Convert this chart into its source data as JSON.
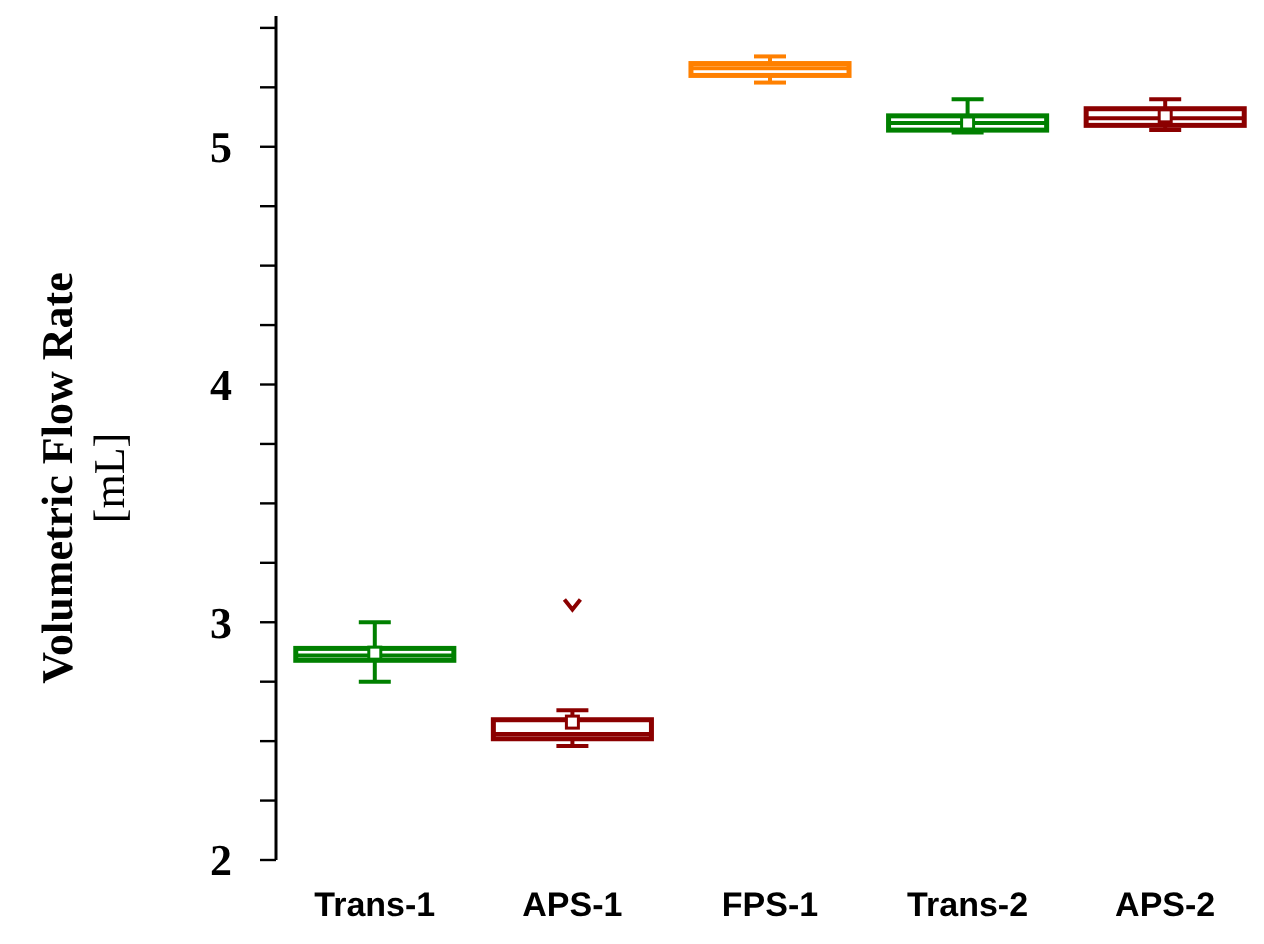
{
  "chart_data": {
    "type": "box",
    "ylabel": "Volumetric Flow Rate\n[mL]",
    "categories": [
      "Trans-1",
      "APS-1",
      "FPS-1",
      "Trans-2",
      "APS-2"
    ],
    "colors": [
      "#008000",
      "#8b0000",
      "#ff8000",
      "#008000",
      "#8b0000"
    ],
    "boxes": [
      {
        "low": 2.75,
        "q1": 2.84,
        "median": 2.86,
        "q3": 2.89,
        "high": 3.0,
        "mean": 2.87
      },
      {
        "low": 2.48,
        "q1": 2.51,
        "median": 2.53,
        "q3": 2.59,
        "high": 2.63,
        "mean": 2.58,
        "outliers": [
          3.07
        ]
      },
      {
        "low": 5.27,
        "q1": 5.3,
        "median": 5.33,
        "q3": 5.35,
        "high": 5.38
      },
      {
        "low": 5.06,
        "q1": 5.07,
        "median": 5.1,
        "q3": 5.13,
        "high": 5.2,
        "mean": 5.1
      },
      {
        "low": 5.07,
        "q1": 5.09,
        "median": 5.12,
        "q3": 5.16,
        "high": 5.2,
        "mean": 5.13
      }
    ],
    "ylim": [
      2,
      5.55
    ],
    "yticks": [
      2,
      {
        "value": 2.25,
        "label": null
      },
      {
        "value": 2.5,
        "label": null
      },
      {
        "value": 2.75,
        "label": null
      },
      3,
      {
        "value": 3.25,
        "label": null
      },
      {
        "value": 3.5,
        "label": null
      },
      {
        "value": 3.75,
        "label": null
      },
      4,
      {
        "value": 4.25,
        "label": null
      },
      {
        "value": 4.5,
        "label": null
      },
      {
        "value": 4.75,
        "label": null
      },
      5,
      {
        "value": 5.25,
        "label": null
      },
      {
        "value": 5.5,
        "label": null
      }
    ]
  }
}
